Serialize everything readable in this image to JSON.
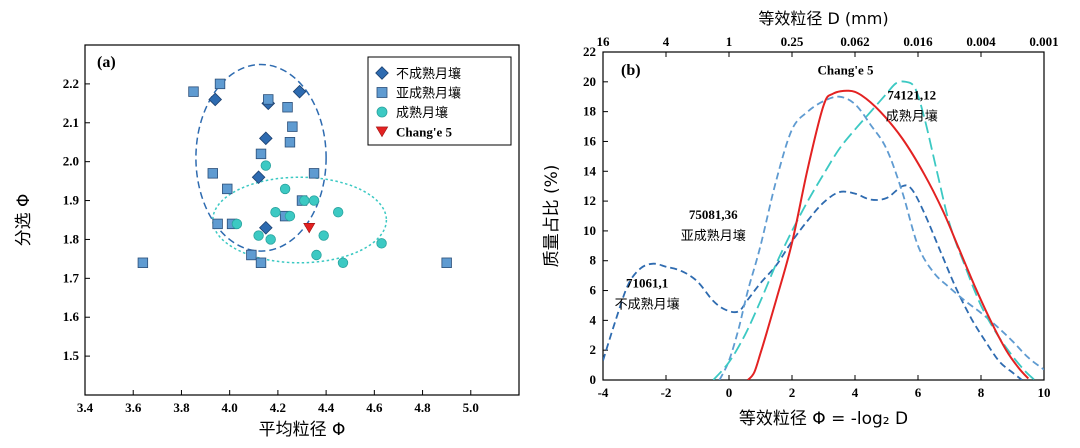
{
  "chart_data": [
    {
      "type": "scatter",
      "panel_label": "(a)",
      "xlabel": "平均粒径 Φ",
      "ylabel": "分选 Φ",
      "xlim": [
        3.4,
        5.2
      ],
      "ylim": [
        1.4,
        2.3
      ],
      "xticks": [
        "3.4",
        "3.6",
        "3.8",
        "4.0",
        "4.2",
        "4.4",
        "4.6",
        "4.8",
        "5.0"
      ],
      "yticks": [
        "1.5",
        "1.6",
        "1.7",
        "1.8",
        "1.9",
        "2.0",
        "2.1",
        "2.2"
      ],
      "legend_position": "top-right",
      "series": [
        {
          "name": "不成熟月壤",
          "marker": "diamond",
          "color": "#2e6bb0",
          "points": [
            [
              3.94,
              2.16
            ],
            [
              4.16,
              2.15
            ],
            [
              4.29,
              2.18
            ],
            [
              4.15,
              2.06
            ],
            [
              4.12,
              1.96
            ],
            [
              4.15,
              1.83
            ]
          ]
        },
        {
          "name": "亚成熟月壤",
          "marker": "square",
          "color": "#5f9bd1",
          "points": [
            [
              3.85,
              2.18
            ],
            [
              3.96,
              2.2
            ],
            [
              4.16,
              2.16
            ],
            [
              4.24,
              2.14
            ],
            [
              4.26,
              2.09
            ],
            [
              4.13,
              2.02
            ],
            [
              4.25,
              2.05
            ],
            [
              3.93,
              1.97
            ],
            [
              3.99,
              1.93
            ],
            [
              4.35,
              1.97
            ],
            [
              4.3,
              1.9
            ],
            [
              3.95,
              1.84
            ],
            [
              4.01,
              1.84
            ],
            [
              4.23,
              1.86
            ],
            [
              4.09,
              1.76
            ],
            [
              4.13,
              1.74
            ],
            [
              3.64,
              1.74
            ],
            [
              4.9,
              1.74
            ]
          ]
        },
        {
          "name": "成熟月壤",
          "marker": "circle",
          "color": "#3cc9c3",
          "points": [
            [
              4.15,
              1.99
            ],
            [
              4.23,
              1.93
            ],
            [
              4.03,
              1.84
            ],
            [
              4.19,
              1.87
            ],
            [
              4.25,
              1.86
            ],
            [
              4.31,
              1.9
            ],
            [
              4.35,
              1.9
            ],
            [
              4.12,
              1.81
            ],
            [
              4.17,
              1.8
            ],
            [
              4.39,
              1.81
            ],
            [
              4.45,
              1.87
            ],
            [
              4.36,
              1.76
            ],
            [
              4.47,
              1.74
            ],
            [
              4.63,
              1.79
            ]
          ]
        },
        {
          "name": "Chang'e 5",
          "marker": "triangle-down",
          "color": "#e32222",
          "points": [
            [
              4.33,
              1.83
            ]
          ]
        }
      ],
      "ellipses": [
        {
          "cx": 4.13,
          "cy": 2.01,
          "rx": 0.27,
          "ry": 0.24,
          "style": "dashed",
          "color": "#2e6bb0"
        },
        {
          "cx": 4.29,
          "cy": 1.85,
          "rx": 0.36,
          "ry": 0.11,
          "style": "dotted",
          "color": "#3cc9c3"
        }
      ]
    },
    {
      "type": "line",
      "panel_label": "(b)",
      "xlabel": "等效粒径 Φ = -log₂ D",
      "ylabel": "质量占比 (%)",
      "top_xlabel": "等效粒径 D (mm)",
      "xlim": [
        -4,
        10
      ],
      "ylim": [
        0,
        22
      ],
      "xticks": [
        "-4",
        "-2",
        "0",
        "2",
        "4",
        "6",
        "8",
        "10"
      ],
      "yticks": [
        "0",
        "2",
        "4",
        "6",
        "8",
        "10",
        "12",
        "14",
        "16",
        "18",
        "20",
        "22"
      ],
      "top_xticks": [
        {
          "phi": -4,
          "label": "16"
        },
        {
          "phi": -2,
          "label": "4"
        },
        {
          "phi": 0,
          "label": "1"
        },
        {
          "phi": 2,
          "label": "0.25"
        },
        {
          "phi": 4,
          "label": "0.062"
        },
        {
          "phi": 6,
          "label": "0.016"
        },
        {
          "phi": 8,
          "label": "0.004"
        },
        {
          "phi": 10,
          "label": "0.001"
        }
      ],
      "series": [
        {
          "name": "Chang'e 5",
          "color": "#e32222",
          "style": "solid",
          "points": [
            [
              0.6,
              0
            ],
            [
              0.8,
              0.5
            ],
            [
              1,
              1.8
            ],
            [
              1.2,
              3.2
            ],
            [
              1.5,
              5.4
            ],
            [
              2,
              9.2
            ],
            [
              2.5,
              14.2
            ],
            [
              3,
              18.4
            ],
            [
              3.3,
              19.2
            ],
            [
              3.8,
              19.4
            ],
            [
              4.2,
              19.1
            ],
            [
              4.8,
              18.0
            ],
            [
              5.5,
              16.2
            ],
            [
              6.2,
              13.8
            ],
            [
              6.8,
              11.3
            ],
            [
              7.3,
              8.8
            ],
            [
              7.8,
              6.3
            ],
            [
              8.3,
              4.0
            ],
            [
              8.8,
              2.0
            ],
            [
              9.2,
              0.8
            ],
            [
              9.5,
              0.1
            ]
          ]
        },
        {
          "name": "71061,1 不成熟月壤",
          "color": "#2e6bb0",
          "style": "dashed",
          "points": [
            [
              -4,
              1.3
            ],
            [
              -3.6,
              4.0
            ],
            [
              -3.2,
              6.4
            ],
            [
              -2.8,
              7.5
            ],
            [
              -2.4,
              7.8
            ],
            [
              -2,
              7.6
            ],
            [
              -1.5,
              7.3
            ],
            [
              -1,
              6.6
            ],
            [
              -0.5,
              5.3
            ],
            [
              -0.1,
              4.7
            ],
            [
              0.3,
              4.6
            ],
            [
              0.6,
              5.4
            ],
            [
              1,
              6.5
            ],
            [
              1.5,
              7.7
            ],
            [
              2,
              9.3
            ],
            [
              2.5,
              10.7
            ],
            [
              3,
              11.9
            ],
            [
              3.5,
              12.6
            ],
            [
              4,
              12.5
            ],
            [
              4.5,
              12.1
            ],
            [
              5,
              12.2
            ],
            [
              5.5,
              13.0
            ],
            [
              5.8,
              12.8
            ],
            [
              6.2,
              11.2
            ],
            [
              6.7,
              8.7
            ],
            [
              7.2,
              6.2
            ],
            [
              7.7,
              4.1
            ],
            [
              8.2,
              2.4
            ],
            [
              8.6,
              1.2
            ],
            [
              9,
              0.5
            ],
            [
              9.3,
              0
            ]
          ]
        },
        {
          "name": "75081,36 亚成熟月壤",
          "color": "#5f9bd1",
          "style": "dashed",
          "points": [
            [
              -0.3,
              0
            ],
            [
              0,
              1.3
            ],
            [
              0.3,
              3.4
            ],
            [
              0.6,
              6.0
            ],
            [
              1,
              9.0
            ],
            [
              1.5,
              13.4
            ],
            [
              2,
              16.8
            ],
            [
              2.5,
              18.0
            ],
            [
              3,
              18.7
            ],
            [
              3.5,
              19.0
            ],
            [
              4,
              18.5
            ],
            [
              4.5,
              17.1
            ],
            [
              5,
              15.5
            ],
            [
              5.5,
              12.6
            ],
            [
              6,
              9.0
            ],
            [
              6.5,
              7.2
            ],
            [
              7,
              6.2
            ],
            [
              7.5,
              5.3
            ],
            [
              8,
              4.5
            ],
            [
              8.5,
              3.6
            ],
            [
              9,
              2.6
            ],
            [
              9.5,
              1.5
            ],
            [
              10,
              0.7
            ]
          ]
        },
        {
          "name": "74121,12 成熟月壤",
          "color": "#3cc9c3",
          "style": "long-dash",
          "points": [
            [
              -0.5,
              0
            ],
            [
              0,
              1.2
            ],
            [
              0.5,
              3.0
            ],
            [
              1,
              5.3
            ],
            [
              1.5,
              7.8
            ],
            [
              2,
              10.0
            ],
            [
              2.5,
              12.0
            ],
            [
              3,
              13.8
            ],
            [
              3.5,
              15.5
            ],
            [
              4,
              16.8
            ],
            [
              4.5,
              18.0
            ],
            [
              5,
              19.2
            ],
            [
              5.3,
              19.9
            ],
            [
              5.6,
              20.0
            ],
            [
              5.9,
              19.6
            ],
            [
              6.2,
              17.6
            ],
            [
              6.6,
              14.0
            ],
            [
              7,
              10.5
            ],
            [
              7.5,
              7.6
            ],
            [
              8,
              5.0
            ],
            [
              8.5,
              3.1
            ],
            [
              9,
              1.6
            ],
            [
              9.4,
              0.6
            ],
            [
              9.7,
              0
            ]
          ]
        }
      ],
      "annotations": [
        {
          "text": "Chang'e 5",
          "x": 3.7,
          "y": 20.5
        },
        {
          "text": "74121,12",
          "x": 5.8,
          "y": 18.8
        },
        {
          "text": "成熟月壤",
          "x": 5.8,
          "y": 17.4
        },
        {
          "text": "75081,36",
          "x": -0.5,
          "y": 10.8
        },
        {
          "text": "亚成熟月壤",
          "x": -0.5,
          "y": 9.4
        },
        {
          "text": "71061,1",
          "x": -2.6,
          "y": 6.2
        },
        {
          "text": "不成熟月壤",
          "x": -2.6,
          "y": 4.8
        }
      ]
    }
  ]
}
